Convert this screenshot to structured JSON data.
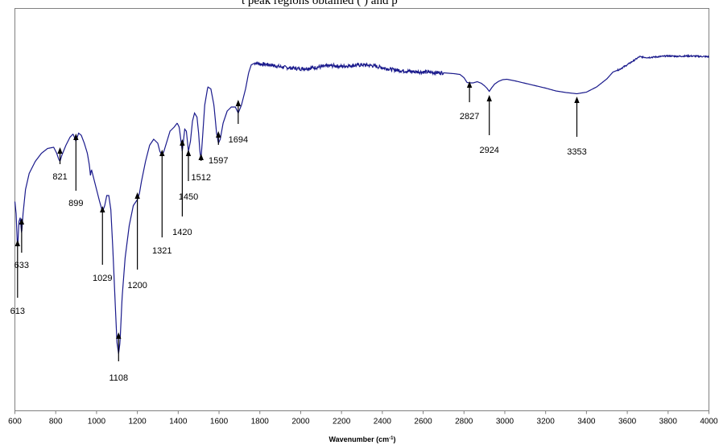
{
  "header_text": "                      t peak regions obtained  (                                             )   and  p",
  "chart_data": {
    "type": "line",
    "title": "",
    "xlabel": "Wavenumber (cm",
    "xlabel_sup": "-1",
    "xlabel_end": ")",
    "ylabel": "",
    "xlim": [
      600,
      4000
    ],
    "ylim": [
      0,
      100
    ],
    "grid": false,
    "x_ticks": [
      600,
      800,
      1000,
      1200,
      1400,
      1600,
      1800,
      2000,
      2200,
      2400,
      2600,
      2800,
      3000,
      3200,
      3400,
      3600,
      3800,
      4000
    ],
    "line_color": "#1a1a8c",
    "series": [
      {
        "points": [
          [
            600,
            52
          ],
          [
            606,
            49
          ],
          [
            613,
            40
          ],
          [
            620,
            47
          ],
          [
            626,
            48
          ],
          [
            633,
            44
          ],
          [
            640,
            49
          ],
          [
            652,
            55
          ],
          [
            670,
            59
          ],
          [
            700,
            62
          ],
          [
            730,
            64
          ],
          [
            760,
            65.2
          ],
          [
            790,
            65.5
          ],
          [
            805,
            64
          ],
          [
            815,
            62.5
          ],
          [
            821,
            62
          ],
          [
            830,
            63.5
          ],
          [
            850,
            66
          ],
          [
            870,
            68
          ],
          [
            885,
            68.8
          ],
          [
            899,
            67
          ],
          [
            912,
            69
          ],
          [
            925,
            68.5
          ],
          [
            940,
            66.5
          ],
          [
            955,
            64
          ],
          [
            965,
            61
          ],
          [
            970,
            58.5
          ],
          [
            975,
            60
          ],
          [
            985,
            58
          ],
          [
            1000,
            55
          ],
          [
            1015,
            52
          ],
          [
            1029,
            49.5
          ],
          [
            1040,
            51
          ],
          [
            1050,
            53.5
          ],
          [
            1060,
            53.5
          ],
          [
            1070,
            50
          ],
          [
            1080,
            40
          ],
          [
            1092,
            26
          ],
          [
            1100,
            17
          ],
          [
            1108,
            14.2
          ],
          [
            1115,
            17
          ],
          [
            1125,
            28
          ],
          [
            1140,
            38
          ],
          [
            1160,
            46
          ],
          [
            1180,
            51
          ],
          [
            1200,
            52.5
          ],
          [
            1210,
            54
          ],
          [
            1220,
            57
          ],
          [
            1240,
            62
          ],
          [
            1260,
            66
          ],
          [
            1280,
            67.5
          ],
          [
            1300,
            66.5
          ],
          [
            1310,
            64.5
          ],
          [
            1321,
            63.5
          ],
          [
            1330,
            64.5
          ],
          [
            1345,
            67
          ],
          [
            1360,
            69.5
          ],
          [
            1380,
            70.5
          ],
          [
            1395,
            71.5
          ],
          [
            1405,
            70.5
          ],
          [
            1420,
            64.5
          ],
          [
            1432,
            70
          ],
          [
            1440,
            69.5
          ],
          [
            1450,
            64.5
          ],
          [
            1460,
            67
          ],
          [
            1470,
            72
          ],
          [
            1480,
            74
          ],
          [
            1492,
            73
          ],
          [
            1500,
            69
          ],
          [
            1507,
            64
          ],
          [
            1512,
            62.8
          ],
          [
            1518,
            67
          ],
          [
            1530,
            76
          ],
          [
            1545,
            80.5
          ],
          [
            1560,
            80
          ],
          [
            1575,
            76
          ],
          [
            1588,
            69
          ],
          [
            1597,
            66.5
          ],
          [
            1606,
            67.5
          ],
          [
            1620,
            71.5
          ],
          [
            1640,
            74.5
          ],
          [
            1660,
            75.5
          ],
          [
            1680,
            75.5
          ],
          [
            1694,
            74
          ],
          [
            1710,
            76
          ],
          [
            1730,
            80
          ],
          [
            1745,
            84
          ],
          [
            1758,
            86
          ],
          [
            1780,
            86.5
          ],
          [
            1800,
            86.2
          ],
          [
            1850,
            86
          ],
          [
            1900,
            85.5
          ],
          [
            1950,
            85.2
          ],
          [
            2000,
            85
          ],
          [
            2050,
            85.2
          ],
          [
            2100,
            85.5
          ],
          [
            2150,
            85.8
          ],
          [
            2200,
            85.6
          ],
          [
            2250,
            85.8
          ],
          [
            2300,
            86
          ],
          [
            2350,
            85.8
          ],
          [
            2400,
            85.3
          ],
          [
            2450,
            84.8
          ],
          [
            2500,
            84.5
          ],
          [
            2550,
            84.3
          ],
          [
            2600,
            84.2
          ],
          [
            2650,
            84.1
          ],
          [
            2700,
            84
          ],
          [
            2750,
            83.8
          ],
          [
            2780,
            83.6
          ],
          [
            2800,
            82.8
          ],
          [
            2815,
            81.6
          ],
          [
            2827,
            81.5
          ],
          [
            2845,
            81.5
          ],
          [
            2865,
            81.8
          ],
          [
            2885,
            81.4
          ],
          [
            2900,
            80.8
          ],
          [
            2912,
            80.2
          ],
          [
            2924,
            79.4
          ],
          [
            2936,
            80.3
          ],
          [
            2950,
            81.2
          ],
          [
            2970,
            81.9
          ],
          [
            2990,
            82.3
          ],
          [
            3010,
            82.4
          ],
          [
            3050,
            82
          ],
          [
            3100,
            81.4
          ],
          [
            3150,
            80.8
          ],
          [
            3200,
            80.2
          ],
          [
            3250,
            79.5
          ],
          [
            3300,
            79.1
          ],
          [
            3353,
            78.8
          ],
          [
            3400,
            79.2
          ],
          [
            3450,
            80.5
          ],
          [
            3500,
            82.5
          ],
          [
            3530,
            84.2
          ],
          [
            3560,
            84.8
          ],
          [
            3600,
            86
          ],
          [
            3630,
            87
          ],
          [
            3660,
            88
          ],
          [
            3700,
            87.8
          ],
          [
            3750,
            88
          ],
          [
            3800,
            88.2
          ],
          [
            3850,
            88.1
          ],
          [
            3900,
            88.2
          ],
          [
            3950,
            88.1
          ],
          [
            4000,
            88
          ]
        ]
      }
    ],
    "annotations": [
      {
        "label": "613",
        "x": 613
      },
      {
        "label": "633",
        "x": 633
      },
      {
        "label": "821",
        "x": 821
      },
      {
        "label": "899",
        "x": 899
      },
      {
        "label": "1029",
        "x": 1029
      },
      {
        "label": "1108",
        "x": 1108
      },
      {
        "label": "1200",
        "x": 1200
      },
      {
        "label": "1321",
        "x": 1321
      },
      {
        "label": "1420",
        "x": 1420
      },
      {
        "label": "1450",
        "x": 1450
      },
      {
        "label": "1512",
        "x": 1512
      },
      {
        "label": "1597",
        "x": 1597
      },
      {
        "label": "1694",
        "x": 1694
      },
      {
        "label": "2827",
        "x": 2827
      },
      {
        "label": "2924",
        "x": 2924
      },
      {
        "label": "3353",
        "x": 3353
      }
    ]
  }
}
